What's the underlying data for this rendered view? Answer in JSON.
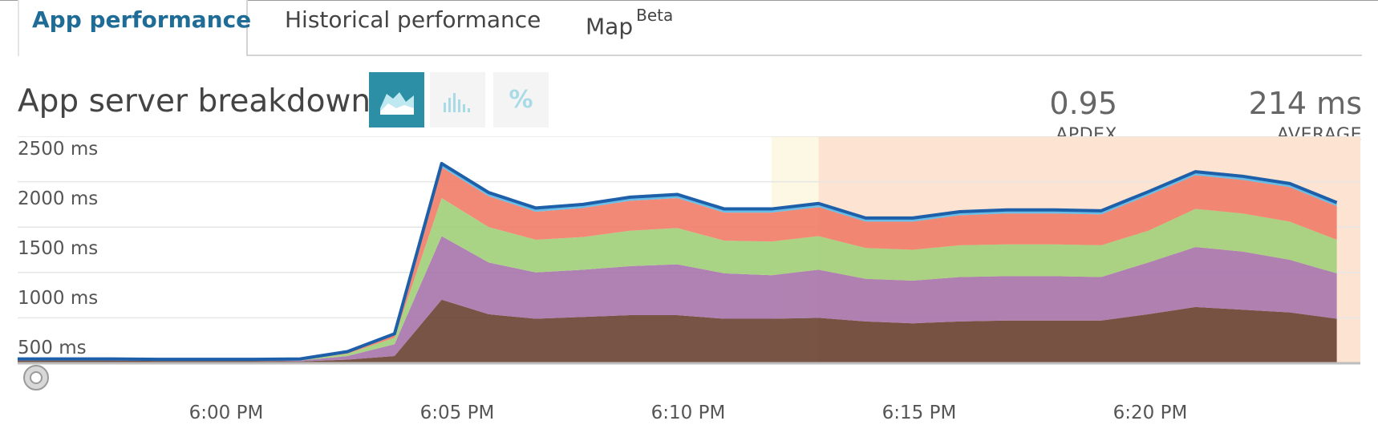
{
  "tabs": [
    {
      "label": "App performance",
      "active": true
    },
    {
      "label": "Historical performance",
      "active": false
    },
    {
      "label": "Map",
      "badge": "Beta",
      "active": false
    }
  ],
  "panel": {
    "title": "App server breakdown",
    "view_buttons": [
      {
        "icon": "area-chart-icon",
        "active": true
      },
      {
        "icon": "bar-chart-icon",
        "active": false
      },
      {
        "icon": "percent-icon",
        "label": "%",
        "active": false
      }
    ]
  },
  "metrics": {
    "apdex": {
      "value": "0.95",
      "label": "APDEX"
    },
    "average": {
      "value": "214 ms",
      "label": "AVERAGE"
    }
  },
  "colors": {
    "accent": "#1f6c96",
    "layer_base": "#6b4535",
    "layer_purple": "#a877ac",
    "layer_green": "#a3d07b",
    "layer_red": "#f07f6a",
    "layer_lightblue": "#5cb8e6",
    "line_total": "#1d5fa8",
    "band_yellow": "#fdf8e4",
    "band_orange": "#fde3d1"
  },
  "chart_data": {
    "type": "area",
    "stacked": true,
    "x": [
      "5:56 PM",
      "5:57 PM",
      "5:58 PM",
      "5:59 PM",
      "6:00 PM",
      "6:01 PM",
      "6:02 PM",
      "6:03 PM",
      "6:04 PM",
      "6:05 PM",
      "6:06 PM",
      "6:07 PM",
      "6:08 PM",
      "6:09 PM",
      "6:10 PM",
      "6:11 PM",
      "6:12 PM",
      "6:13 PM",
      "6:14 PM",
      "6:15 PM",
      "6:16 PM",
      "6:17 PM",
      "6:18 PM",
      "6:19 PM",
      "6:20 PM",
      "6:21 PM",
      "6:22 PM",
      "6:23 PM",
      "6:24 PM"
    ],
    "x_ticks": [
      "6:00 PM",
      "6:05 PM",
      "6:10 PM",
      "6:15 PM",
      "6:20 PM"
    ],
    "y_ticks": [
      "2500 ms",
      "2000 ms",
      "1500 ms",
      "1000 ms",
      "500 ms"
    ],
    "ylim": [
      0,
      2500
    ],
    "series": [
      {
        "values": [
          30,
          30,
          30,
          25,
          25,
          25,
          20,
          40,
          80,
          700,
          540,
          490,
          510,
          530,
          530,
          490,
          490,
          500,
          460,
          440,
          460,
          470,
          470,
          470,
          540,
          620,
          590,
          560,
          490
        ]
      },
      {
        "values": [
          5,
          5,
          5,
          5,
          5,
          5,
          10,
          40,
          130,
          700,
          570,
          510,
          520,
          540,
          560,
          500,
          480,
          530,
          470,
          470,
          490,
          490,
          490,
          480,
          570,
          660,
          640,
          580,
          500
        ]
      },
      {
        "values": [
          5,
          5,
          5,
          5,
          5,
          5,
          5,
          25,
          70,
          420,
          390,
          360,
          360,
          390,
          400,
          360,
          370,
          370,
          340,
          340,
          350,
          350,
          350,
          350,
          350,
          420,
          420,
          420,
          370
        ]
      },
      {
        "values": [
          5,
          5,
          5,
          5,
          5,
          5,
          10,
          20,
          40,
          340,
          340,
          310,
          320,
          330,
          330,
          310,
          320,
          320,
          290,
          310,
          330,
          340,
          340,
          340,
          390,
          370,
          370,
          380,
          370
        ]
      },
      {
        "values": [
          3,
          3,
          3,
          3,
          3,
          3,
          3,
          3,
          5,
          40,
          40,
          40,
          40,
          40,
          40,
          40,
          40,
          40,
          40,
          40,
          40,
          40,
          40,
          40,
          40,
          40,
          40,
          40,
          40
        ]
      }
    ],
    "grid": true,
    "overlays": [
      {
        "from": "6:12 PM",
        "to": "6:13 PM",
        "color": "#fdf8e4"
      },
      {
        "from": "6:13 PM",
        "to": "6:24 PM",
        "color": "#fde3d1"
      }
    ]
  }
}
